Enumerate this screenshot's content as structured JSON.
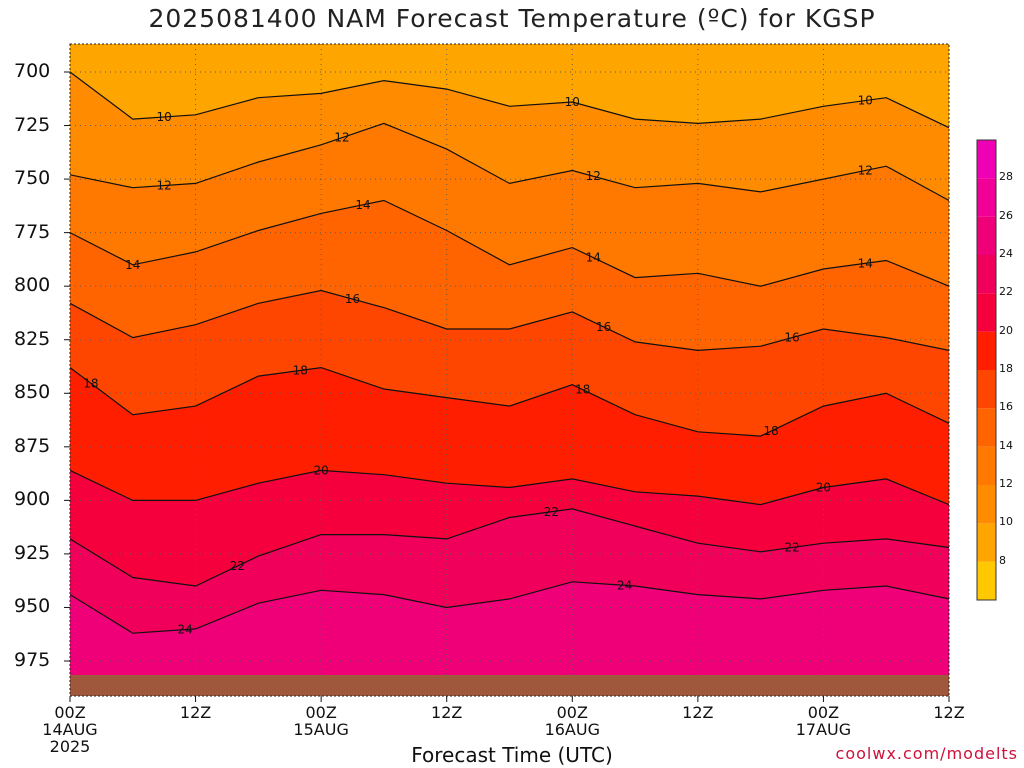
{
  "title": "2025081400 NAM Forecast Temperature (ºC) for KGSP",
  "xlabel": "Forecast Time (UTC)",
  "credit": "coolwx.com/modelts",
  "chart_data": {
    "type": "contour",
    "title": "2025081400 NAM Forecast Temperature (ºC) for KGSP",
    "xlabel": "Forecast Time (UTC)",
    "ylabel": "",
    "x_ticks": [
      {
        "hour": 0,
        "lines": [
          "00Z",
          "14AUG",
          "2025"
        ]
      },
      {
        "hour": 12,
        "lines": [
          "12Z"
        ]
      },
      {
        "hour": 24,
        "lines": [
          "00Z",
          "15AUG"
        ]
      },
      {
        "hour": 36,
        "lines": [
          "12Z"
        ]
      },
      {
        "hour": 48,
        "lines": [
          "00Z",
          "16AUG"
        ]
      },
      {
        "hour": 60,
        "lines": [
          "12Z"
        ]
      },
      {
        "hour": 72,
        "lines": [
          "00Z",
          "17AUG"
        ]
      },
      {
        "hour": 84,
        "lines": [
          "12Z"
        ]
      }
    ],
    "y_ticks": [
      700,
      725,
      750,
      775,
      800,
      825,
      850,
      875,
      900,
      925,
      950,
      975
    ],
    "ylim_hPa": [
      989,
      689
    ],
    "xlim_hours": [
      0,
      84
    ],
    "grid": true,
    "colorbar": {
      "ticks": [
        8,
        10,
        12,
        14,
        16,
        18,
        20,
        22,
        24,
        26,
        28
      ],
      "bands": [
        {
          "min": 6,
          "max": 8,
          "color": "#ffc800"
        },
        {
          "min": 8,
          "max": 10,
          "color": "#ffa500"
        },
        {
          "min": 10,
          "max": 12,
          "color": "#ff8c00"
        },
        {
          "min": 12,
          "max": 14,
          "color": "#ff7800"
        },
        {
          "min": 14,
          "max": 16,
          "color": "#ff6400"
        },
        {
          "min": 16,
          "max": 18,
          "color": "#ff4600"
        },
        {
          "min": 18,
          "max": 20,
          "color": "#ff1e00"
        },
        {
          "min": 20,
          "max": 22,
          "color": "#f5003c"
        },
        {
          "min": 22,
          "max": 24,
          "color": "#f0005a"
        },
        {
          "min": 24,
          "max": 26,
          "color": "#f00078"
        },
        {
          "min": 26,
          "max": 28,
          "color": "#f00096"
        },
        {
          "min": 28,
          "max": 30,
          "color": "#f000b4"
        }
      ]
    },
    "ground_color": "#a0583c",
    "contour_hours": [
      0,
      6,
      12,
      18,
      24,
      30,
      36,
      42,
      48,
      54,
      60,
      66,
      72,
      78,
      84
    ],
    "contours": [
      {
        "level": 10,
        "pressure": [
          700,
          722,
          720,
          712,
          710,
          704,
          708,
          716,
          714,
          722,
          724,
          722,
          716,
          712,
          726
        ],
        "labels": [
          {
            "hour": 9,
            "text": "10"
          },
          {
            "hour": 48,
            "text": "10"
          },
          {
            "hour": 76,
            "text": "10"
          }
        ]
      },
      {
        "level": 12,
        "pressure": [
          748,
          754,
          752,
          742,
          734,
          724,
          736,
          752,
          746,
          754,
          752,
          756,
          750,
          744,
          760
        ],
        "labels": [
          {
            "hour": 9,
            "text": "12"
          },
          {
            "hour": 26,
            "text": "12"
          },
          {
            "hour": 50,
            "text": "12"
          },
          {
            "hour": 76,
            "text": "12"
          }
        ]
      },
      {
        "level": 14,
        "pressure": [
          775,
          790,
          784,
          774,
          766,
          760,
          774,
          790,
          782,
          796,
          794,
          800,
          792,
          788,
          800
        ],
        "labels": [
          {
            "hour": 6,
            "text": "14"
          },
          {
            "hour": 28,
            "text": "14"
          },
          {
            "hour": 50,
            "text": "14"
          },
          {
            "hour": 76,
            "text": "14"
          }
        ]
      },
      {
        "level": 16,
        "pressure": [
          808,
          824,
          818,
          808,
          802,
          810,
          820,
          820,
          812,
          826,
          830,
          828,
          820,
          824,
          830
        ],
        "labels": [
          {
            "hour": 27,
            "text": "16"
          },
          {
            "hour": 51,
            "text": "16"
          },
          {
            "hour": 69,
            "text": "16"
          }
        ]
      },
      {
        "level": 18,
        "pressure": [
          838,
          860,
          856,
          842,
          838,
          848,
          852,
          856,
          846,
          860,
          868,
          870,
          856,
          850,
          864
        ],
        "labels": [
          {
            "hour": 2,
            "text": "18"
          },
          {
            "hour": 22,
            "text": "18"
          },
          {
            "hour": 49,
            "text": "18"
          },
          {
            "hour": 67,
            "text": "18"
          }
        ]
      },
      {
        "level": 20,
        "pressure": [
          886,
          900,
          900,
          892,
          886,
          888,
          892,
          894,
          890,
          896,
          898,
          902,
          894,
          890,
          902
        ],
        "labels": [
          {
            "hour": 24,
            "text": "20"
          },
          {
            "hour": 72,
            "text": "20"
          }
        ]
      },
      {
        "level": 22,
        "pressure": [
          918,
          936,
          940,
          926,
          916,
          916,
          918,
          908,
          904,
          912,
          920,
          924,
          920,
          918,
          922
        ],
        "labels": [
          {
            "hour": 16,
            "text": "22"
          },
          {
            "hour": 46,
            "text": "22"
          },
          {
            "hour": 69,
            "text": "22"
          }
        ]
      },
      {
        "level": 24,
        "pressure": [
          944,
          962,
          960,
          948,
          942,
          944,
          950,
          946,
          938,
          940,
          944,
          946,
          942,
          940,
          946
        ],
        "labels": [
          {
            "hour": 11,
            "text": "24"
          },
          {
            "hour": 53,
            "text": "24"
          }
        ]
      }
    ]
  }
}
